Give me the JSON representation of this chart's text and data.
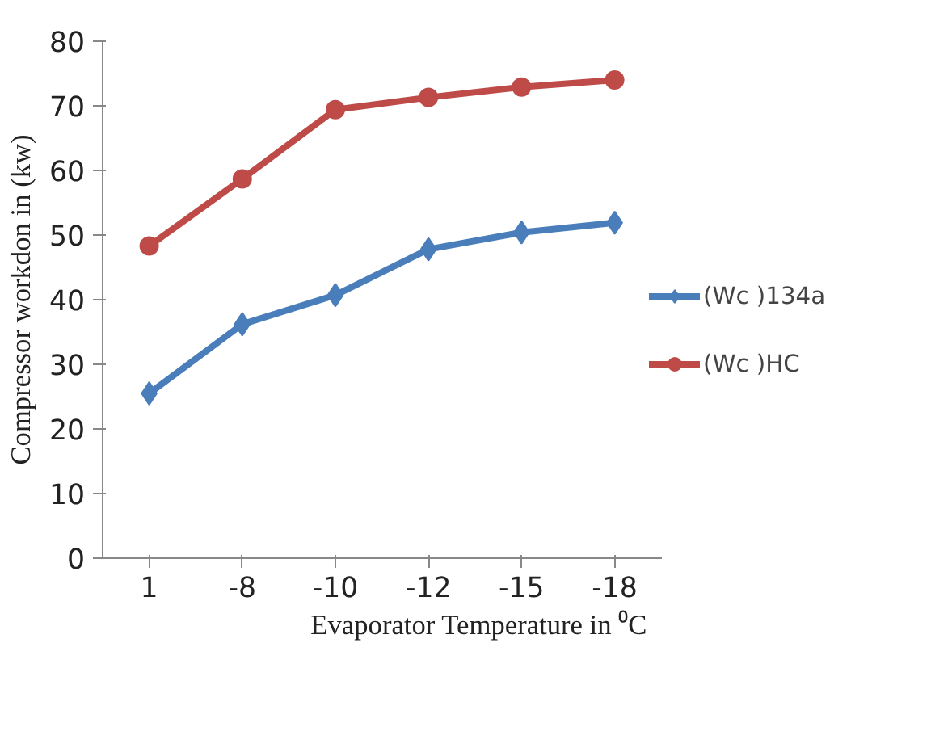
{
  "chart_data": {
    "type": "line",
    "xlabel": "Evaporator Temperature  in ⁰C",
    "ylabel": "Compressor workdon in (kw)",
    "categories": [
      "1",
      "-8",
      "-10",
      "-12",
      "-15",
      "-18"
    ],
    "series": [
      {
        "name": "(Wc )134a",
        "color": "#4a7ebb",
        "marker": "diamond",
        "values": [
          25.5,
          36.2,
          40.7,
          47.8,
          50.4,
          51.9
        ]
      },
      {
        "name": "(Wc )HC",
        "color": "#be4b48",
        "marker": "circle",
        "values": [
          48.3,
          58.7,
          69.4,
          71.3,
          72.9,
          74.0
        ]
      }
    ],
    "ylim": [
      0,
      80
    ],
    "yticks": [
      0,
      10,
      20,
      30,
      40,
      50,
      60,
      70,
      80
    ],
    "grid": false,
    "legend": "right",
    "line_style": "solid"
  }
}
